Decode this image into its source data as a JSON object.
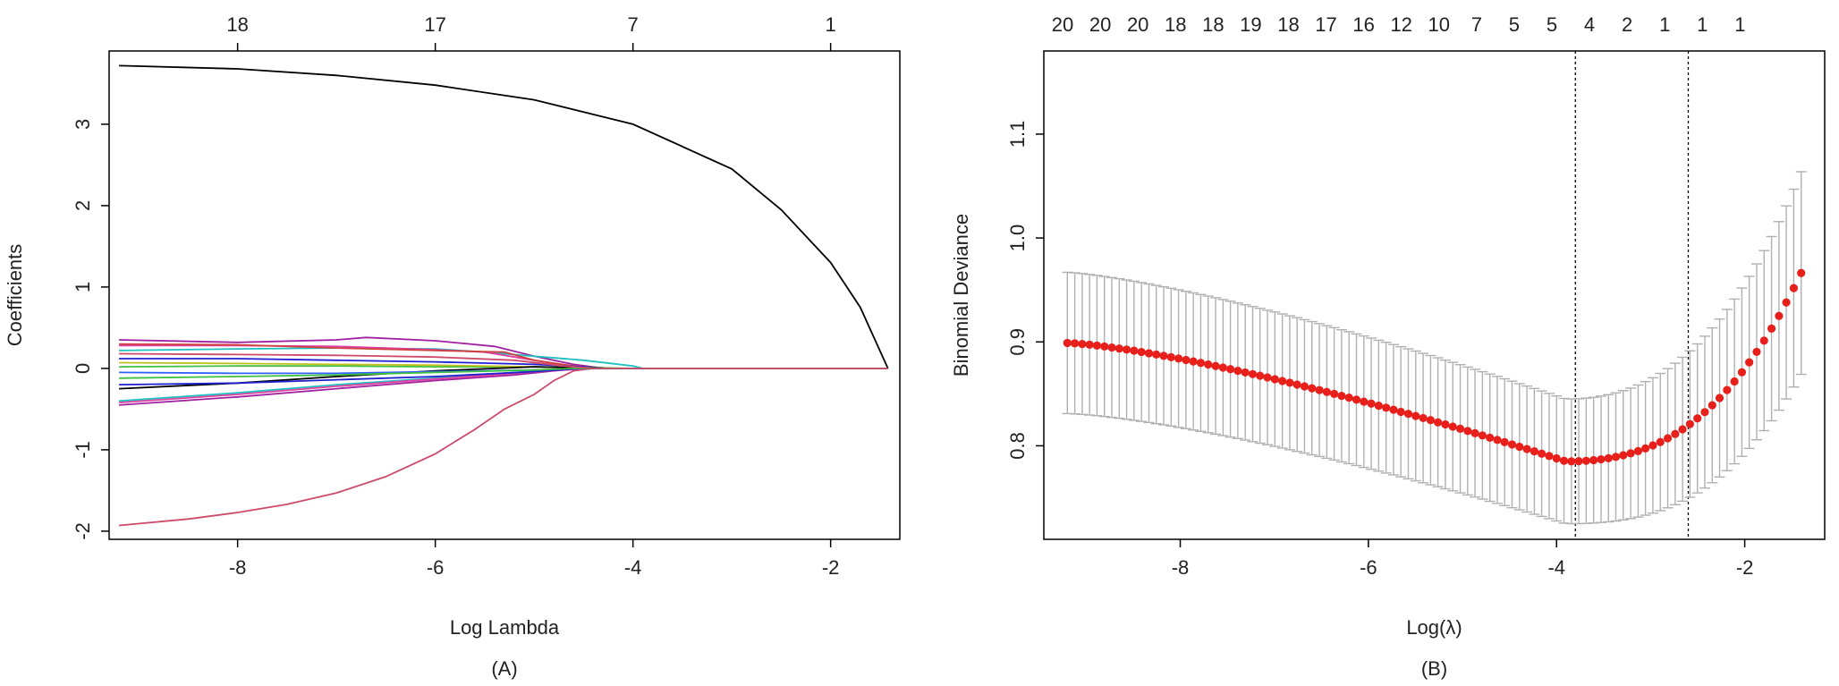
{
  "chart_data": [
    {
      "panel_label": "(A)",
      "type": "line",
      "xlabel": "Log Lambda",
      "ylabel": "Coefficients",
      "xlim": [
        -9.3,
        -1.3
      ],
      "ylim": [
        -2.1,
        3.9
      ],
      "x_ticks": [
        "-8",
        "-6",
        "-4",
        "-2"
      ],
      "y_ticks": [
        "-2",
        "-1",
        "0",
        "1",
        "2",
        "3"
      ],
      "top_ticks": [
        {
          "x": -8,
          "label": "18"
        },
        {
          "x": -6,
          "label": "17"
        },
        {
          "x": -4,
          "label": "7"
        },
        {
          "x": -2,
          "label": "1"
        }
      ],
      "grid": false,
      "series": [
        {
          "color": "#000000",
          "x": [
            -9.2,
            -8,
            -7,
            -6,
            -5,
            -4,
            -3,
            -2.5,
            -2,
            -1.7,
            -1.42
          ],
          "values": [
            3.72,
            3.68,
            3.6,
            3.48,
            3.3,
            3.0,
            2.45,
            1.95,
            1.3,
            0.75,
            0.0
          ]
        },
        {
          "color": "#cd4a6a",
          "x": [
            -9.2,
            -8.5,
            -8,
            -7.5,
            -7,
            -6.5,
            -6,
            -5.6,
            -5.3,
            -5.0,
            -4.8,
            -4.6,
            -4.4,
            -1.42
          ],
          "values": [
            -1.93,
            -1.85,
            -1.77,
            -1.67,
            -1.53,
            -1.33,
            -1.05,
            -0.75,
            -0.5,
            -0.32,
            -0.15,
            -0.03,
            0.0,
            0.0
          ]
        },
        {
          "color": "#a020a0",
          "x": [
            -9.2,
            -8,
            -7,
            -6.7,
            -6,
            -5.4,
            -5.0,
            -4.6,
            -4.3,
            -1.42
          ],
          "values": [
            0.35,
            0.32,
            0.35,
            0.38,
            0.34,
            0.27,
            0.15,
            0.05,
            0.0,
            0.0
          ]
        },
        {
          "color": "#20c0c0",
          "x": [
            -9.2,
            -8,
            -7,
            -6,
            -5.5,
            -5,
            -4.5,
            -4.0,
            -3.9,
            -1.42
          ],
          "values": [
            0.22,
            0.24,
            0.25,
            0.24,
            0.2,
            0.15,
            0.1,
            0.03,
            0.0,
            0.0
          ]
        },
        {
          "color": "#e040a0",
          "x": [
            -9.2,
            -8,
            -7,
            -6,
            -5.5,
            -5,
            -4.7,
            -4.4,
            -1.42
          ],
          "values": [
            0.28,
            0.28,
            0.27,
            0.23,
            0.2,
            0.1,
            0.04,
            0.0,
            0.0
          ]
        },
        {
          "color": "#d04040",
          "x": [
            -9.2,
            -8,
            -7,
            -6,
            -5.3,
            -5,
            -4.6,
            -4.2,
            -1.42
          ],
          "values": [
            0.3,
            0.29,
            0.25,
            0.22,
            0.2,
            0.1,
            0.03,
            0.0,
            0.0
          ]
        },
        {
          "color": "#2020d0",
          "x": [
            -9.2,
            -8,
            -7,
            -6,
            -5,
            -4.5,
            -4.2,
            -1.42
          ],
          "values": [
            0.12,
            0.12,
            0.1,
            0.08,
            0.05,
            0.02,
            0.0,
            0.0
          ]
        },
        {
          "color": "#40c040",
          "x": [
            -9.2,
            -8,
            -7,
            -6,
            -5,
            -4.5,
            -4.0,
            -1.42
          ],
          "values": [
            0.02,
            0.03,
            0.03,
            0.02,
            0.02,
            0.01,
            0.0,
            0.0
          ]
        },
        {
          "color": "#c0c020",
          "x": [
            -9.2,
            -8,
            -7,
            -6,
            -5,
            -4.5,
            -1.42
          ],
          "values": [
            0.07,
            0.06,
            0.05,
            0.04,
            0.02,
            0.0,
            0.0
          ]
        },
        {
          "color": "#000000",
          "x": [
            -9.2,
            -8,
            -7,
            -6,
            -5,
            -4.6,
            -4.3,
            -1.42
          ],
          "values": [
            -0.25,
            -0.18,
            -0.1,
            -0.03,
            0.02,
            0.01,
            0.0,
            0.0
          ]
        },
        {
          "color": "#3060ff",
          "x": [
            -9.2,
            -8,
            -7,
            -6,
            -5,
            -4.5,
            -1.42
          ],
          "values": [
            -0.05,
            -0.06,
            -0.06,
            -0.04,
            -0.02,
            0.0,
            0.0
          ]
        },
        {
          "color": "#20c0c0",
          "x": [
            -9.2,
            -8,
            -7,
            -6,
            -5.2,
            -4.8,
            -4.5,
            -1.42
          ],
          "values": [
            -0.4,
            -0.3,
            -0.2,
            -0.12,
            -0.05,
            -0.02,
            0.0,
            0.0
          ]
        },
        {
          "color": "#a020a0",
          "x": [
            -9.2,
            -8,
            -7,
            -6,
            -5.2,
            -4.8,
            -4.5,
            -1.42
          ],
          "values": [
            -0.45,
            -0.35,
            -0.25,
            -0.15,
            -0.08,
            -0.03,
            0.0,
            0.0
          ]
        },
        {
          "color": "#e040a0",
          "x": [
            -9.2,
            -8,
            -7,
            -6,
            -5.2,
            -4.7,
            -4.4,
            -1.42
          ],
          "values": [
            -0.42,
            -0.32,
            -0.22,
            -0.13,
            -0.06,
            -0.02,
            0.0,
            0.0
          ]
        },
        {
          "color": "#2020d0",
          "x": [
            -9.2,
            -8,
            -7,
            -6,
            -5,
            -4.5,
            -1.42
          ],
          "values": [
            -0.2,
            -0.18,
            -0.14,
            -0.1,
            -0.04,
            0.0,
            0.0
          ]
        },
        {
          "color": "#40c040",
          "x": [
            -9.2,
            -8,
            -7,
            -6,
            -5,
            -4.6,
            -1.42
          ],
          "values": [
            -0.12,
            -0.1,
            -0.08,
            -0.05,
            -0.02,
            0.0,
            0.0
          ]
        },
        {
          "color": "#cd4a6a",
          "x": [
            -9.2,
            -8,
            -7,
            -6,
            -5.2,
            -4.7,
            -4.4,
            -1.42
          ],
          "values": [
            0.18,
            0.17,
            0.16,
            0.14,
            0.1,
            0.03,
            0.0,
            0.0
          ]
        }
      ]
    },
    {
      "panel_label": "(B)",
      "type": "scatter",
      "xlabel": "Log(λ)",
      "ylabel": "Binomial Deviance",
      "xlim": [
        -9.45,
        -1.15
      ],
      "ylim": [
        0.71,
        1.18
      ],
      "x_ticks": [
        "-8",
        "-6",
        "-4",
        "-2"
      ],
      "y_ticks": [
        "0.8",
        "0.9",
        "1.0",
        "1.1"
      ],
      "grid": false,
      "top_ticks": [
        {
          "x": -9.25,
          "label": "20"
        },
        {
          "x": -8.85,
          "label": "20"
        },
        {
          "x": -8.45,
          "label": "20"
        },
        {
          "x": -8.05,
          "label": "18"
        },
        {
          "x": -7.65,
          "label": "18"
        },
        {
          "x": -7.25,
          "label": "19"
        },
        {
          "x": -6.85,
          "label": "18"
        },
        {
          "x": -6.45,
          "label": "17"
        },
        {
          "x": -6.05,
          "label": "16"
        },
        {
          "x": -5.65,
          "label": "12"
        },
        {
          "x": -5.25,
          "label": "10"
        },
        {
          "x": -4.85,
          "label": "7"
        },
        {
          "x": -4.45,
          "label": "5"
        },
        {
          "x": -4.05,
          "label": "5"
        },
        {
          "x": -3.65,
          "label": "4"
        },
        {
          "x": -3.25,
          "label": "2"
        },
        {
          "x": -2.85,
          "label": "1"
        },
        {
          "x": -2.45,
          "label": "1"
        },
        {
          "x": -2.05,
          "label": "1"
        }
      ],
      "vlines": [
        -3.8,
        -2.6
      ],
      "point_color": "#e8201c",
      "errorbar_color": "#b0b0b0",
      "x_start": -9.2,
      "x_end": -1.4,
      "x": [],
      "values": [],
      "upper": [],
      "lower": []
    }
  ]
}
